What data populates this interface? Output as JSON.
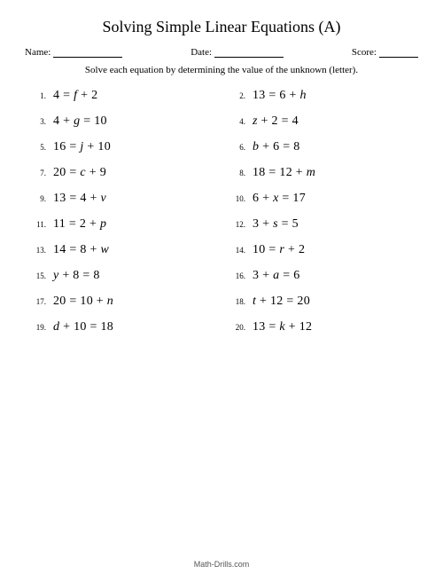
{
  "title": "Solving Simple Linear Equations (A)",
  "header": {
    "name_label": "Name:",
    "date_label": "Date:",
    "score_label": "Score:"
  },
  "instruction": "Solve each equation by determining the value of the unknown (letter).",
  "problems": [
    {
      "n": "1.",
      "lhs": "4",
      "rhs_a": "f",
      "op": "+",
      "rhs_b": "2",
      "form": "n_eq_v_n"
    },
    {
      "n": "2.",
      "lhs": "13",
      "rhs_a": "6",
      "op": "+",
      "rhs_b": "h",
      "form": "n_eq_n_v"
    },
    {
      "n": "3.",
      "lhs_a": "4",
      "op": "+",
      "lhs_b": "g",
      "rhs": "10",
      "form": "n_v_eq_n"
    },
    {
      "n": "4.",
      "lhs_a": "z",
      "op": "+",
      "lhs_b": "2",
      "rhs": "4",
      "form": "v_n_eq_n"
    },
    {
      "n": "5.",
      "lhs": "16",
      "rhs_a": "j",
      "op": "+",
      "rhs_b": "10",
      "form": "n_eq_v_n"
    },
    {
      "n": "6.",
      "lhs_a": "b",
      "op": "+",
      "lhs_b": "6",
      "rhs": "8",
      "form": "v_n_eq_n"
    },
    {
      "n": "7.",
      "lhs": "20",
      "rhs_a": "c",
      "op": "+",
      "rhs_b": "9",
      "form": "n_eq_v_n"
    },
    {
      "n": "8.",
      "lhs": "18",
      "rhs_a": "12",
      "op": "+",
      "rhs_b": "m",
      "form": "n_eq_n_v"
    },
    {
      "n": "9.",
      "lhs": "13",
      "rhs_a": "4",
      "op": "+",
      "rhs_b": "v",
      "form": "n_eq_n_v"
    },
    {
      "n": "10.",
      "lhs_a": "6",
      "op": "+",
      "lhs_b": "x",
      "rhs": "17",
      "form": "n_v_eq_n"
    },
    {
      "n": "11.",
      "lhs": "11",
      "rhs_a": "2",
      "op": "+",
      "rhs_b": "p",
      "form": "n_eq_n_v"
    },
    {
      "n": "12.",
      "lhs_a": "3",
      "op": "+",
      "lhs_b": "s",
      "rhs": "5",
      "form": "n_v_eq_n"
    },
    {
      "n": "13.",
      "lhs": "14",
      "rhs_a": "8",
      "op": "+",
      "rhs_b": "w",
      "form": "n_eq_n_v"
    },
    {
      "n": "14.",
      "lhs": "10",
      "rhs_a": "r",
      "op": "+",
      "rhs_b": "2",
      "form": "n_eq_v_n"
    },
    {
      "n": "15.",
      "lhs_a": "y",
      "op": "+",
      "lhs_b": "8",
      "rhs": "8",
      "form": "v_n_eq_n"
    },
    {
      "n": "16.",
      "lhs_a": "3",
      "op": "+",
      "lhs_b": "a",
      "rhs": "6",
      "form": "n_v_eq_n"
    },
    {
      "n": "17.",
      "lhs": "20",
      "rhs_a": "10",
      "op": "+",
      "rhs_b": "n",
      "form": "n_eq_n_v"
    },
    {
      "n": "18.",
      "lhs_a": "t",
      "op": "+",
      "lhs_b": "12",
      "rhs": "20",
      "form": "v_n_eq_n"
    },
    {
      "n": "19.",
      "lhs_a": "d",
      "op": "+",
      "lhs_b": "10",
      "rhs": "18",
      "form": "v_n_eq_n"
    },
    {
      "n": "20.",
      "lhs": "13",
      "rhs_a": "k",
      "op": "+",
      "rhs_b": "12",
      "form": "n_eq_v_n"
    }
  ],
  "footer": "Math-Drills.com",
  "style": {
    "page_bg": "#ffffff",
    "text_color": "#000000",
    "title_fontsize": 18,
    "body_fontsize": 14,
    "label_fontsize": 11,
    "pnum_fontsize": 9,
    "footer_fontsize": 9,
    "font_family": "Georgia, Times New Roman, serif",
    "columns": 2,
    "rows": 10
  }
}
